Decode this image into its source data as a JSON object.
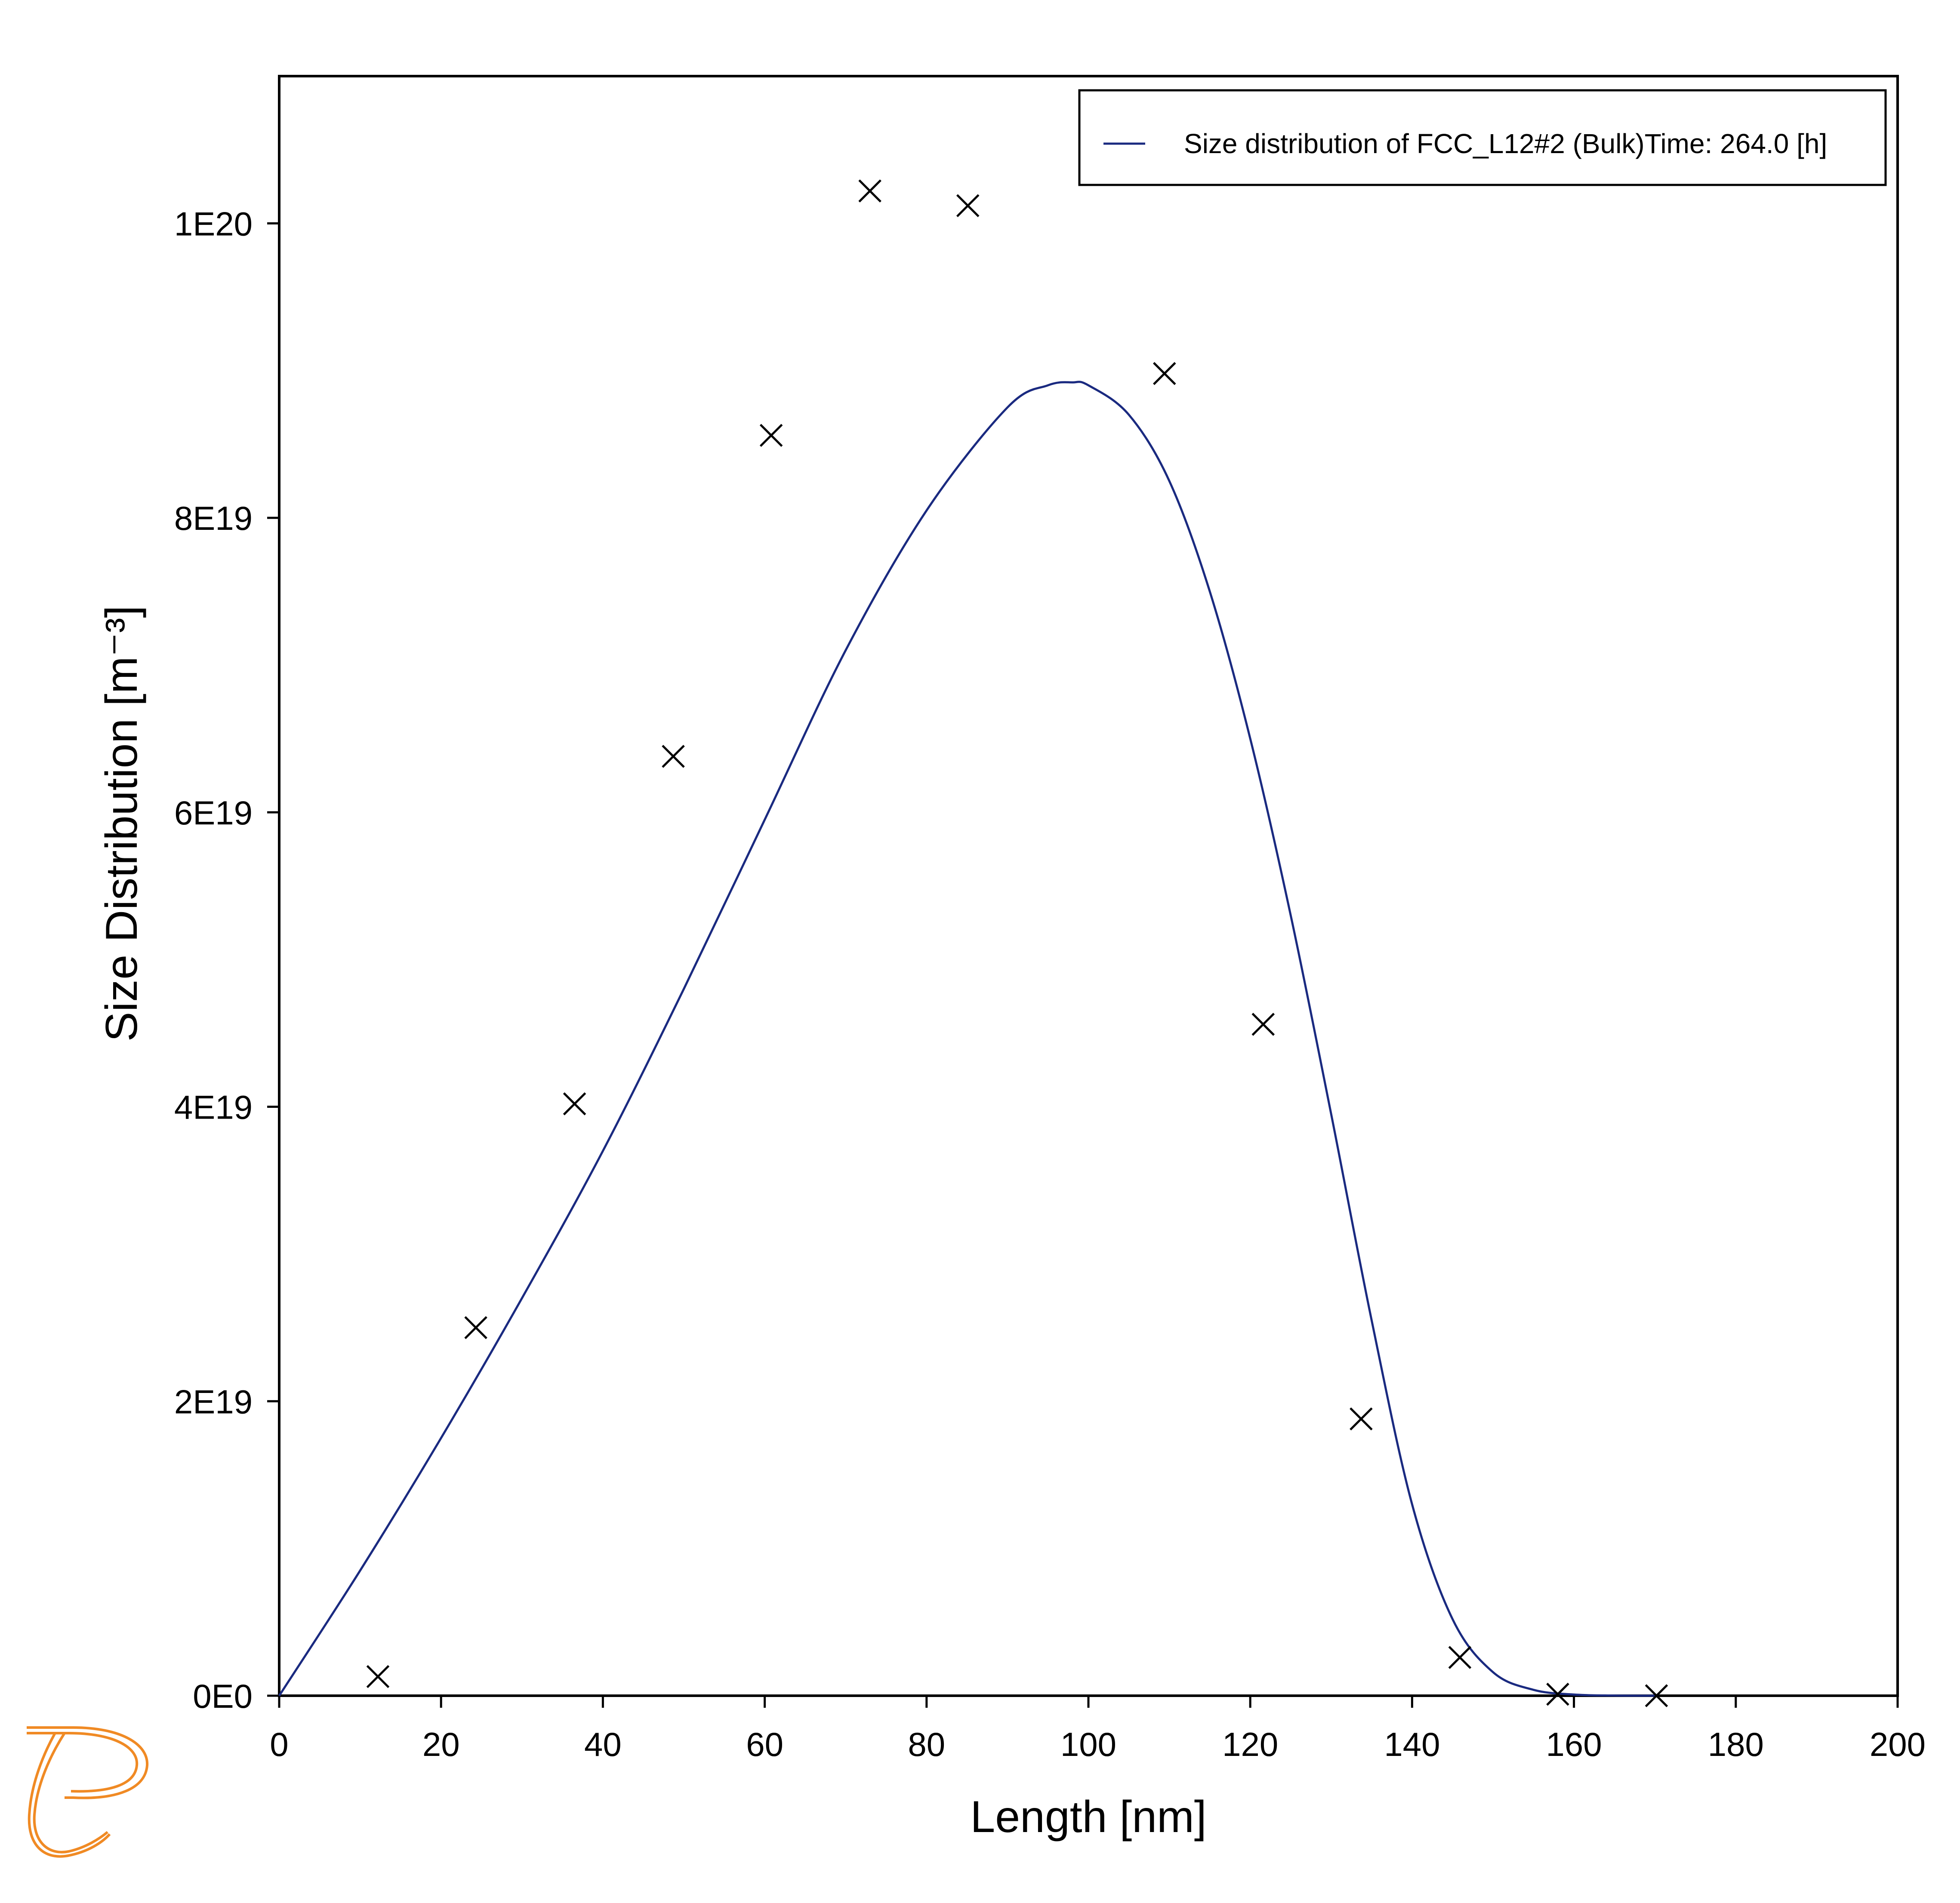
{
  "chart_data": {
    "type": "line",
    "xlabel": "Length [nm]",
    "ylabel": "Size Distribution [m⁻³]",
    "xlim": [
      0,
      200
    ],
    "ylim": [
      0,
      1.1e+20
    ],
    "x_ticks": [
      0,
      20,
      40,
      60,
      80,
      100,
      120,
      140,
      160,
      180,
      200
    ],
    "x_tick_labels": [
      "0",
      "20",
      "40",
      "60",
      "80",
      "100",
      "120",
      "140",
      "160",
      "180",
      "200"
    ],
    "y_ticks": [
      0,
      2e+19,
      4e+19,
      6e+19,
      8e+19,
      1e+20
    ],
    "y_tick_labels": [
      "0E0",
      "2E19",
      "4E19",
      "6E19",
      "8E19",
      "1E20"
    ],
    "grid": false,
    "legend_position": "top-right",
    "series": [
      {
        "name": "Size distribution of FCC_L12#2 (Bulk)Time: 264.0  [h]",
        "type": "line",
        "color": "#1a2a80",
        "x": [
          0,
          10,
          20,
          30,
          40,
          50,
          60,
          70,
          80,
          90,
          95,
          98,
          100,
          105,
          110,
          115,
          120,
          125,
          130,
          135,
          140,
          145,
          150,
          155,
          160,
          165,
          170
        ],
        "values": [
          0,
          8.5e+18,
          1.75e+19,
          2.7e+19,
          3.7e+19,
          4.8e+19,
          5.95e+19,
          7.1e+19,
          8.05e+19,
          8.75e+19,
          8.9e+19,
          8.92e+19,
          8.9e+19,
          8.7e+19,
          8.25e+19,
          7.5e+19,
          6.5e+19,
          5.3e+19,
          3.95e+19,
          2.55e+19,
          1.3e+19,
          5.2e+18,
          1.6e+18,
          4e+17,
          8e+16,
          1e+16,
          0
        ]
      },
      {
        "type": "scatter",
        "marker": "x",
        "color": "#000000",
        "x": [
          12.2,
          24.3,
          36.5,
          48.7,
          60.8,
          73.0,
          85.1,
          109.4,
          121.6,
          133.7,
          145.9,
          158.0,
          170.2
        ],
        "values": [
          1.3e+18,
          2.5e+19,
          4.02e+19,
          6.38e+19,
          8.56e+19,
          1.022e+20,
          1.012e+20,
          8.98e+19,
          4.56e+19,
          1.88e+19,
          2.6e+18,
          1e+17,
          0
        ]
      }
    ]
  },
  "legend": {
    "label": "Size distribution of FCC_L12#2 (Bulk)Time: 264.0  [h]"
  },
  "logo": {
    "name": "thermo-calc-logo-icon",
    "color": "#f08a24"
  }
}
